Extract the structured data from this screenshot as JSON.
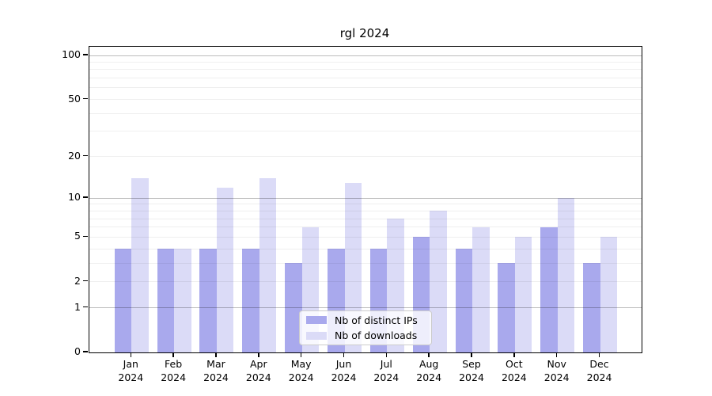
{
  "chart_data": {
    "type": "bar",
    "title": "rgl 2024",
    "categories": [
      "Jan 2024",
      "Feb 2024",
      "Mar 2024",
      "Apr 2024",
      "May 2024",
      "Jun 2024",
      "Jul 2024",
      "Aug 2024",
      "Sep 2024",
      "Oct 2024",
      "Nov 2024",
      "Dec 2024"
    ],
    "series": [
      {
        "name": "Nb of distinct IPs",
        "color": "#a9a9ed",
        "values": [
          4,
          4,
          4,
          4,
          3,
          4,
          4,
          5,
          4,
          3,
          6,
          3
        ]
      },
      {
        "name": "Nb of downloads",
        "color": "#dbdbf7",
        "values": [
          14,
          4,
          12,
          14,
          6,
          13,
          7,
          8,
          6,
          5,
          10,
          5
        ]
      }
    ],
    "xlabel": "",
    "ylabel": "",
    "yscale": "log1p",
    "ylim": [
      0,
      113
    ],
    "yticks": [
      0,
      1,
      2,
      5,
      10,
      20,
      50,
      100
    ],
    "grid": {
      "on": true,
      "major_values": [
        1,
        10,
        100
      ],
      "minor_values": [
        2,
        3,
        4,
        5,
        6,
        7,
        8,
        9,
        20,
        30,
        40,
        50,
        60,
        70,
        80,
        90
      ]
    },
    "legend_position": "inside bottom center",
    "bar_style": "paired side-by-side per month"
  }
}
